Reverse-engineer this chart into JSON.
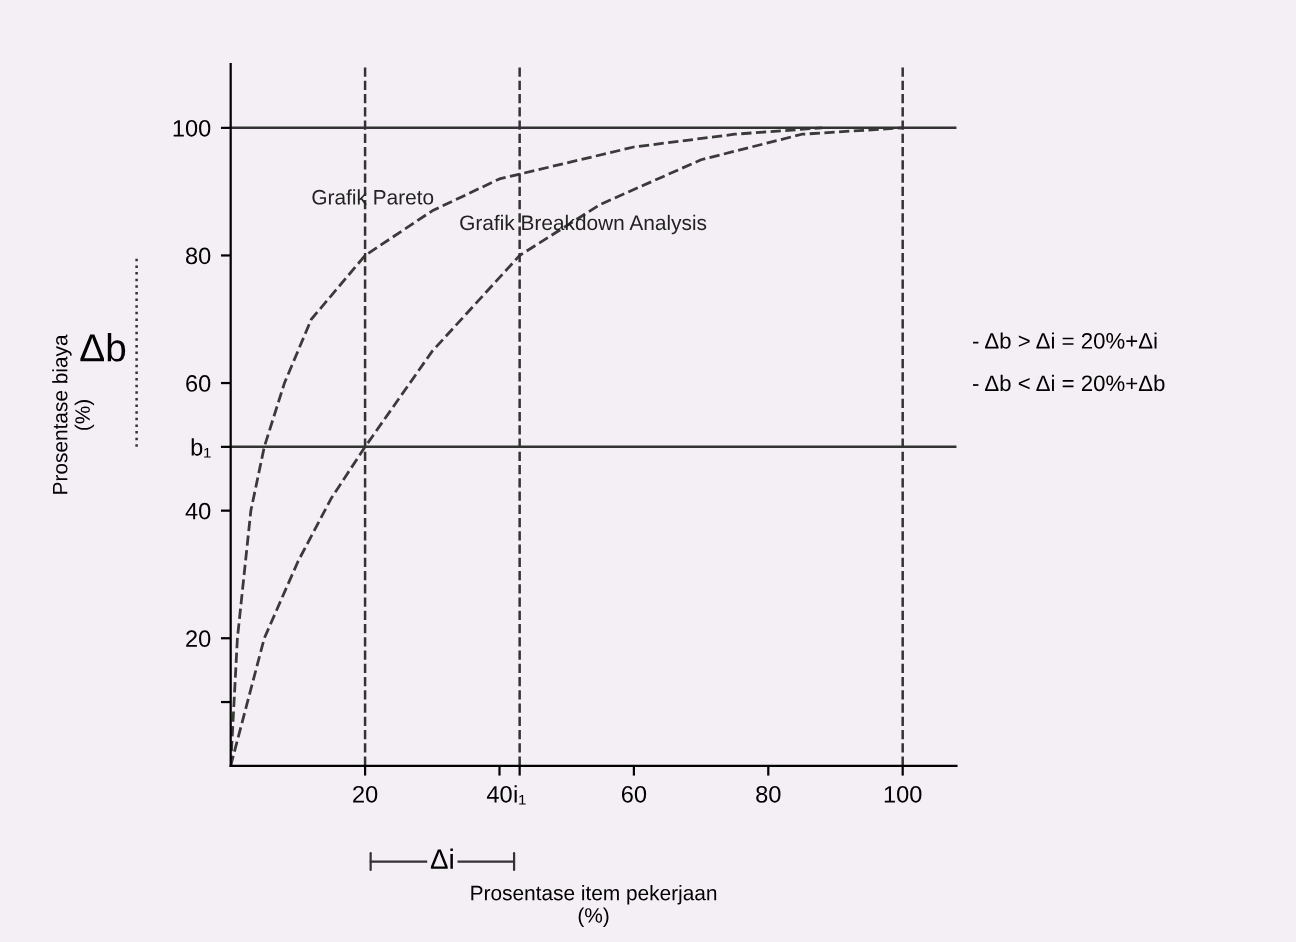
{
  "chart_data": {
    "type": "line",
    "xlabel": "Prosentase item pekerjaan\n(%)",
    "ylabel": "Prosentase biaya\n(%)",
    "xlim": [
      0,
      108
    ],
    "ylim": [
      0,
      110
    ],
    "xticks": [
      20,
      {
        "value": 40,
        "label": "40"
      },
      {
        "value": 43,
        "label": "i₁"
      },
      60,
      80,
      100
    ],
    "yticks": [
      {
        "value": 10,
        "label": null
      },
      20,
      40,
      {
        "value": 50,
        "label": "b₁"
      },
      60,
      80,
      100
    ],
    "grid": false,
    "legend": false,
    "line_style": "dashed",
    "marker": "none",
    "series": [
      {
        "name": "Grafik Pareto",
        "color": "#3a3a3a",
        "x": [
          0,
          1,
          2,
          3,
          5,
          8,
          12,
          20,
          30,
          40,
          60,
          75,
          88
        ],
        "values": [
          0,
          20,
          30,
          40,
          50,
          60,
          70,
          80,
          87,
          92,
          97,
          99,
          100
        ]
      },
      {
        "name": "Grafik Breakdown Analysis",
        "color": "#3a3a3a",
        "x": [
          0,
          5,
          10,
          15,
          20,
          30,
          43,
          55,
          70,
          85,
          100
        ],
        "values": [
          0,
          20,
          32,
          42,
          50,
          65,
          80,
          88,
          95,
          99,
          100
        ]
      }
    ],
    "ref_lines": [
      {
        "axis": "x",
        "value": 20,
        "line_style": "dashed"
      },
      {
        "axis": "x",
        "value": 43,
        "line_style": "dashed"
      },
      {
        "axis": "x",
        "value": 100,
        "line_style": "dashed"
      },
      {
        "axis": "y",
        "value": 100,
        "line_style": "solid"
      },
      {
        "axis": "y",
        "value": 50,
        "line_style": "solid"
      }
    ],
    "annotations": [
      "Δb",
      "Δi",
      "- Δb > Δi = 20%+Δi",
      "- Δb < Δi = 20%+Δb"
    ]
  }
}
